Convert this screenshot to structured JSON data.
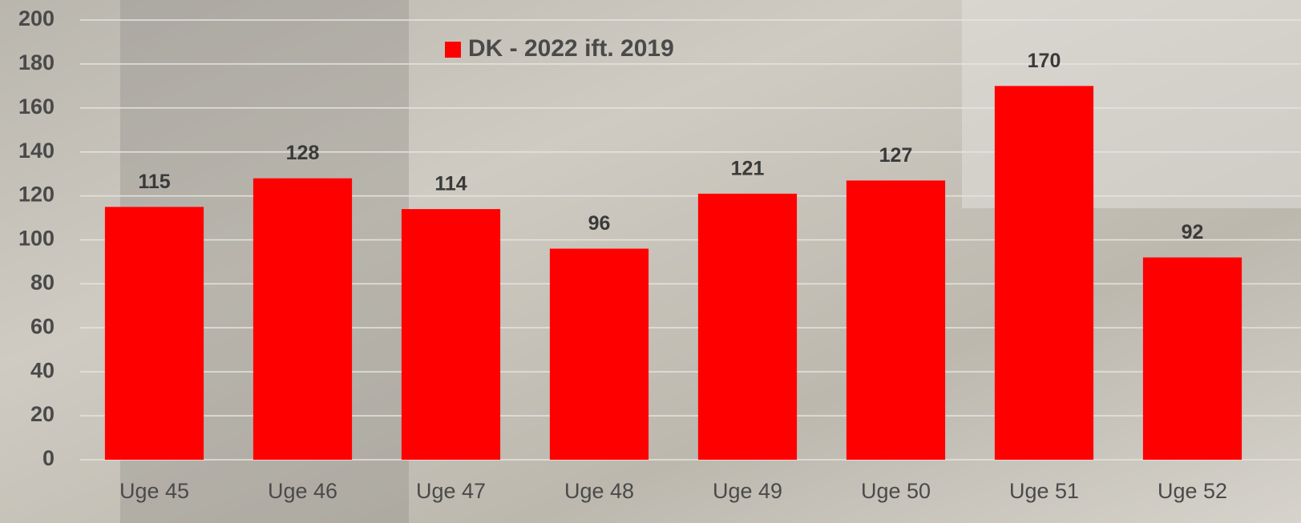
{
  "chart_data": {
    "type": "bar",
    "categories": [
      "Uge 45",
      "Uge 46",
      "Uge 47",
      "Uge 48",
      "Uge 49",
      "Uge 50",
      "Uge 51",
      "Uge 52"
    ],
    "series": [
      {
        "name": "DK - 2022 ift. 2019",
        "color": "#ff0000",
        "values": [
          115,
          128,
          114,
          96,
          121,
          127,
          170,
          92
        ]
      }
    ],
    "ylim": [
      0,
      200
    ],
    "yticks": [
      0,
      20,
      40,
      60,
      80,
      100,
      120,
      140,
      160,
      180,
      200
    ],
    "grid": true,
    "legend": "top"
  }
}
